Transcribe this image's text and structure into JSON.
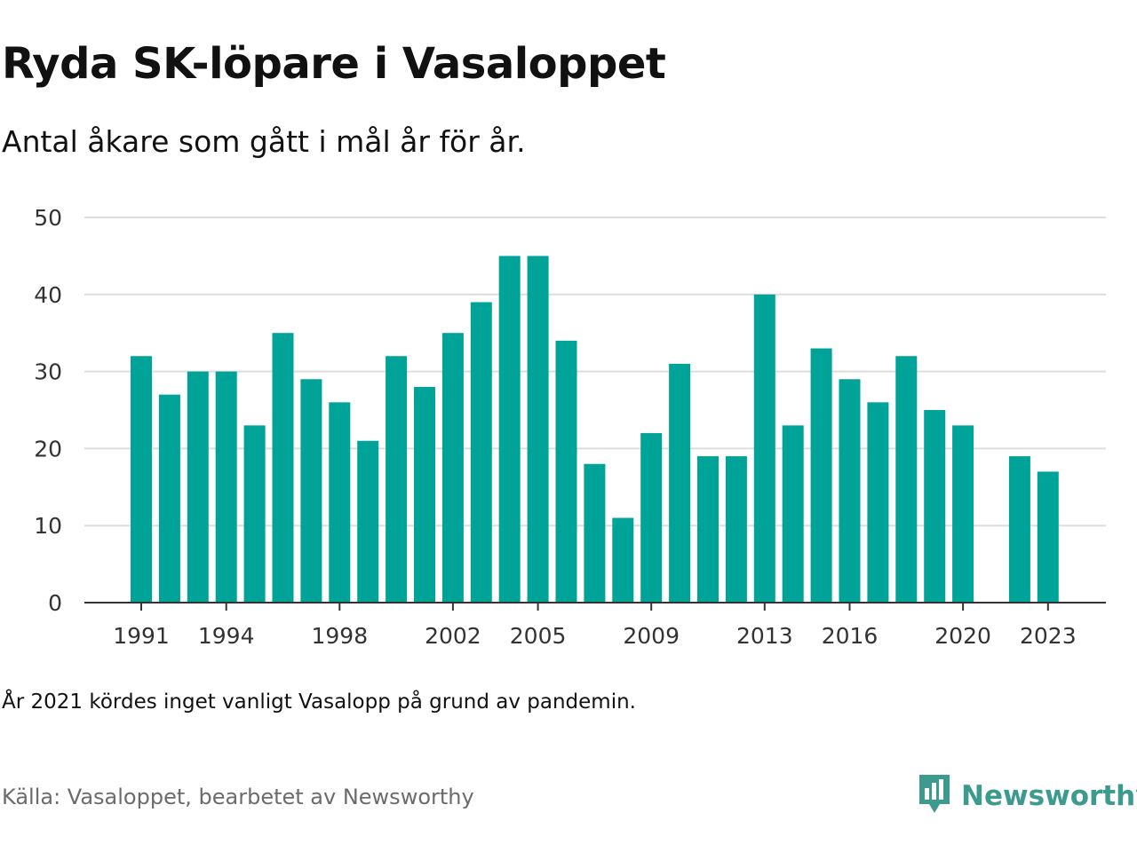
{
  "header": {
    "title": "Ryda SK-löpare i Vasaloppet",
    "subtitle": "Antal åkare som gått i mål år för år."
  },
  "footer": {
    "note": "År 2021 kördes inget vanligt Vasalopp på grund av pandemin.",
    "source": "Källa: Vasaloppet, bearbetet av Newsworthy",
    "logo_text": "Newsworthy",
    "logo_icon": "newsworthy-logo-icon"
  },
  "colors": {
    "bar": "#00a398",
    "grid": "#dddddd",
    "axis": "#333333",
    "logo": "#3d9a8e"
  },
  "chart_data": {
    "type": "bar",
    "title": "Ryda SK-löpare i Vasaloppet",
    "subtitle": "Antal åkare som gått i mål år för år.",
    "xlabel": "",
    "ylabel": "",
    "ylim": [
      0,
      50
    ],
    "yticks": [
      0,
      10,
      20,
      30,
      40,
      50
    ],
    "xticks": [
      1991,
      1994,
      1998,
      2002,
      2005,
      2009,
      2013,
      2016,
      2020,
      2023
    ],
    "grid": true,
    "categories": [
      1991,
      1992,
      1993,
      1994,
      1995,
      1996,
      1997,
      1998,
      1999,
      2000,
      2001,
      2002,
      2003,
      2004,
      2005,
      2006,
      2007,
      2008,
      2009,
      2010,
      2011,
      2012,
      2013,
      2014,
      2015,
      2016,
      2017,
      2018,
      2019,
      2020,
      2021,
      2022,
      2023
    ],
    "values": [
      32,
      27,
      30,
      30,
      23,
      35,
      29,
      26,
      21,
      32,
      28,
      35,
      39,
      45,
      45,
      34,
      18,
      11,
      22,
      31,
      19,
      19,
      40,
      23,
      33,
      29,
      26,
      32,
      25,
      23,
      null,
      19,
      17
    ]
  }
}
